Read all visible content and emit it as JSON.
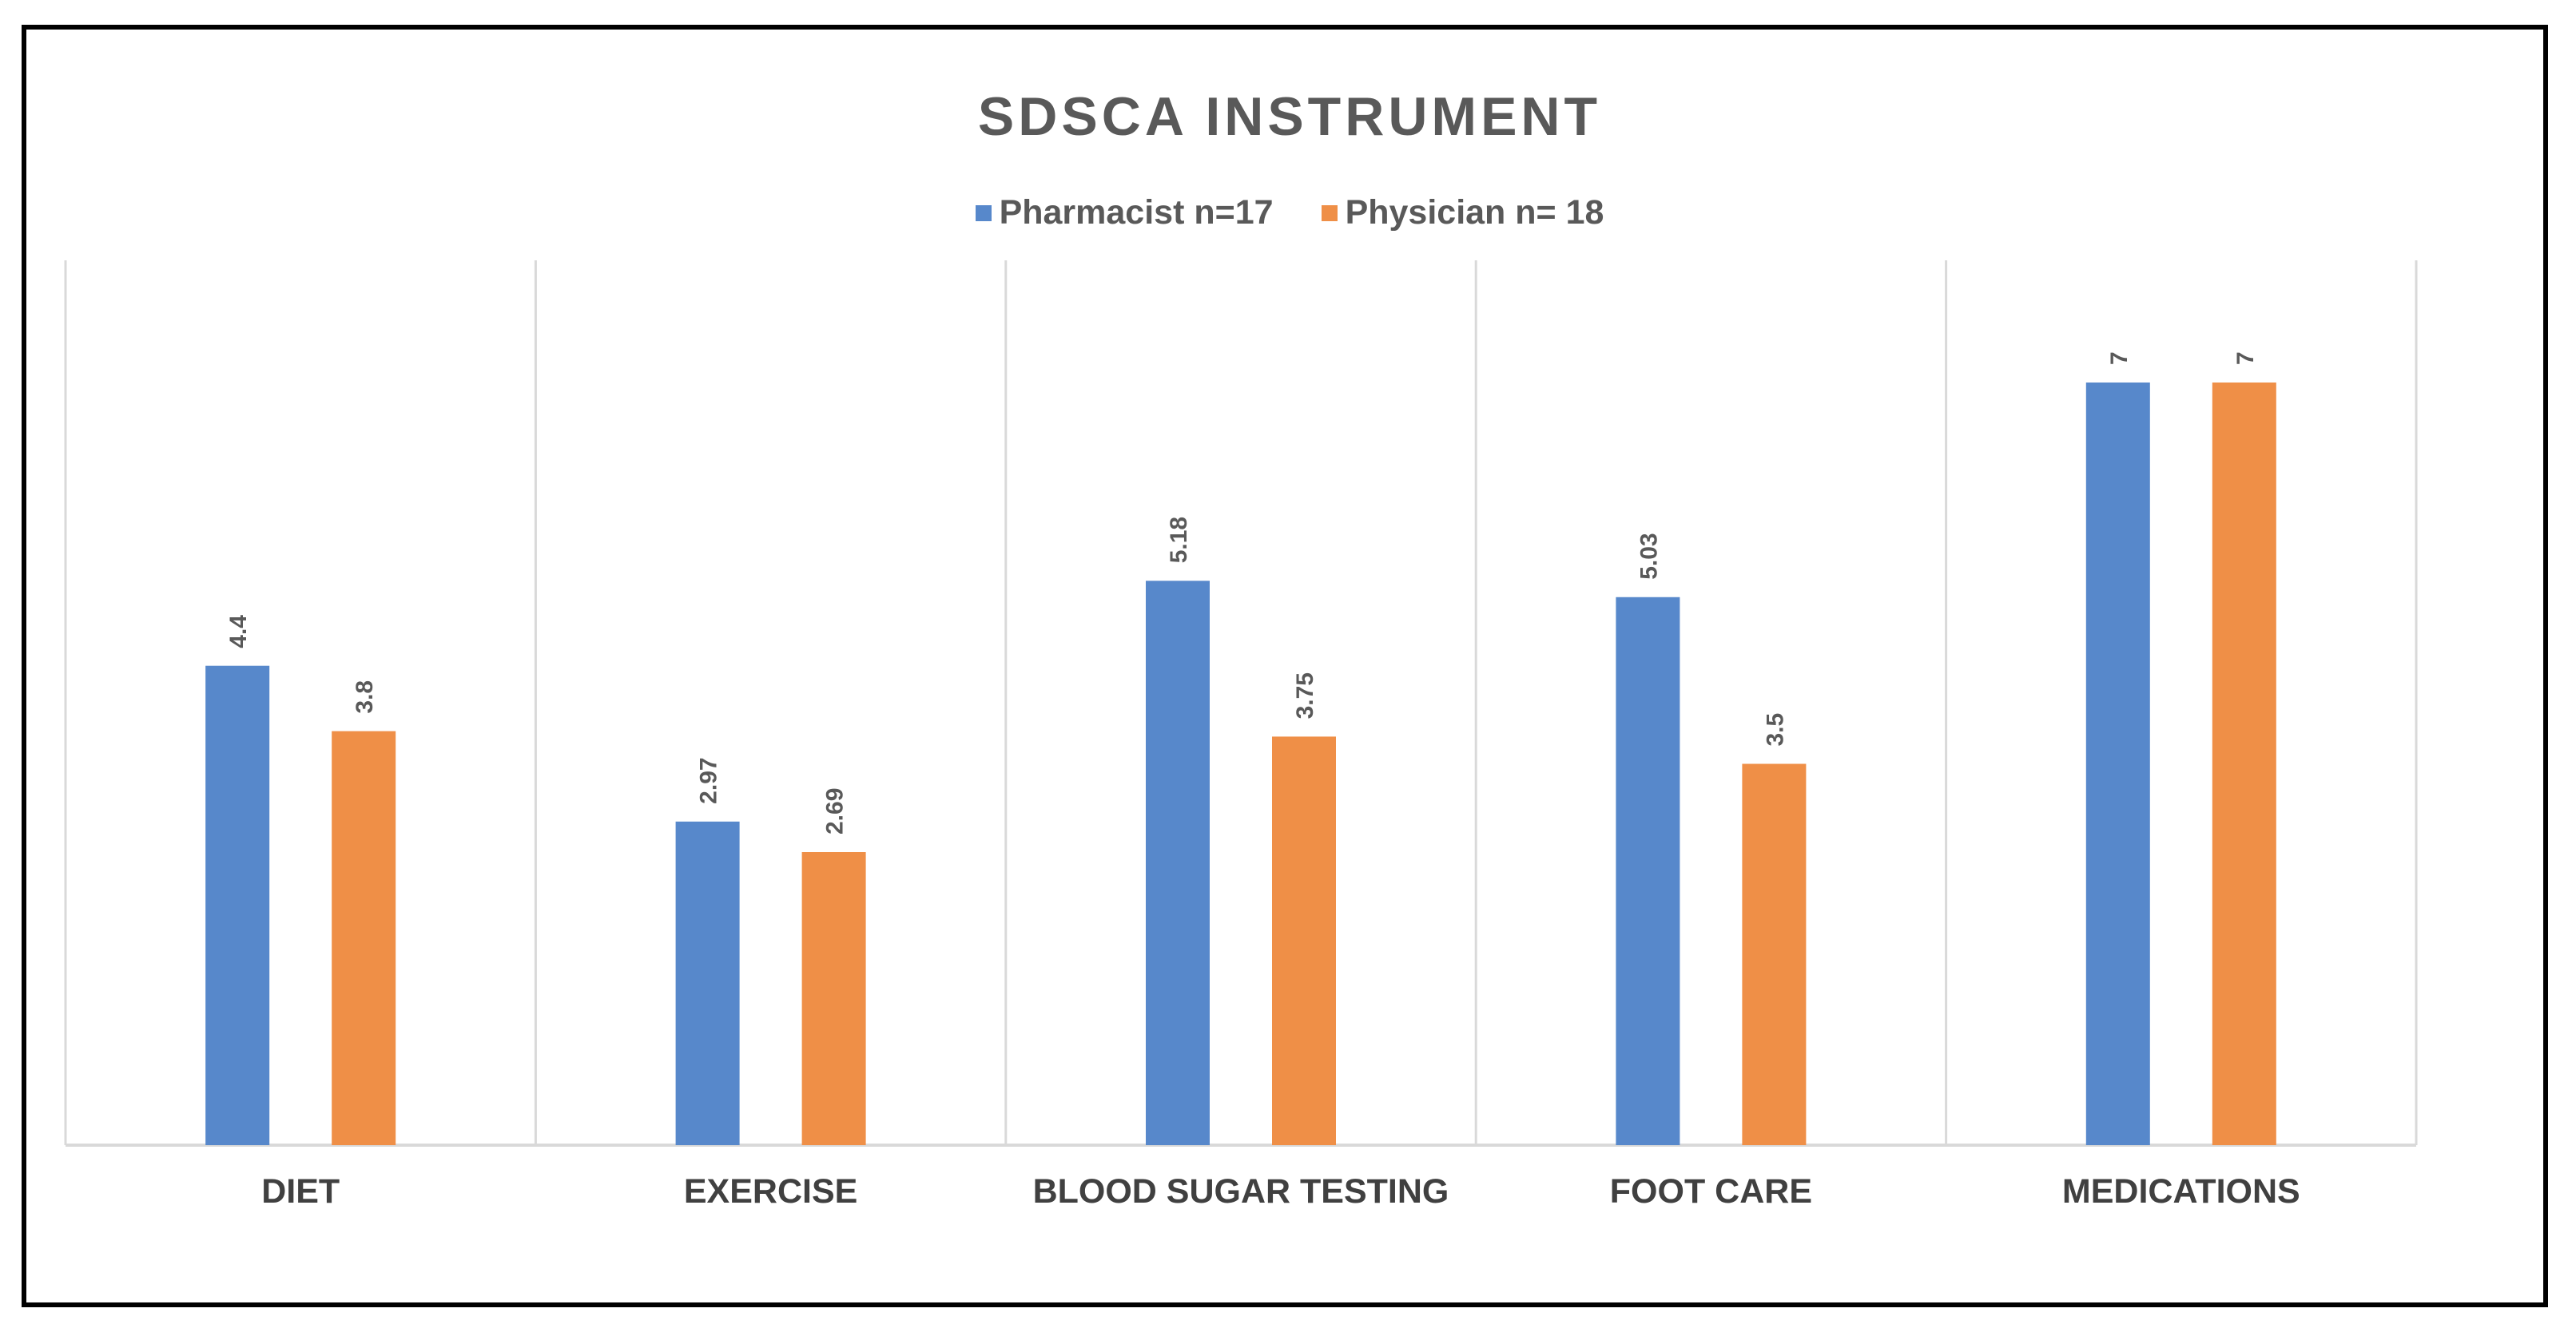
{
  "chart_data": {
    "type": "bar",
    "title": "SDSCA INSTRUMENT",
    "categories": [
      "DIET",
      "EXERCISE",
      "BLOOD SUGAR TESTING",
      "FOOT CARE",
      "MEDICATIONS"
    ],
    "series": [
      {
        "name": "Pharmacist n=17",
        "color": "#5788CB",
        "values": [
          4.4,
          2.97,
          5.18,
          5.03,
          7
        ],
        "labels": [
          "4.4",
          "2.97",
          "5.18",
          "5.03",
          "7"
        ]
      },
      {
        "name": "Physician n= 18",
        "color": "#EF8F47",
        "values": [
          3.8,
          2.69,
          3.75,
          3.5,
          7
        ],
        "labels": [
          "3.8",
          "2.69",
          "3.75",
          "3.5",
          "7"
        ]
      }
    ],
    "ylim": [
      0,
      8
    ],
    "xlabel": "",
    "ylabel": "",
    "grid": "vertical category separators",
    "legend_position": "top"
  }
}
